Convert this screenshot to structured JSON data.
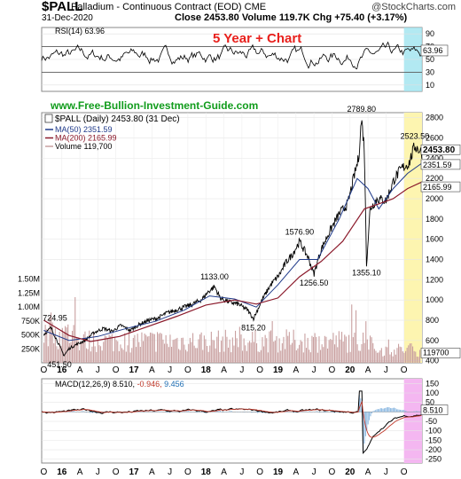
{
  "header": {
    "symbol": "$PALL",
    "name": "Palladium - Continuous Contract (EOD)",
    "exchange": "CME",
    "date": "31-Dec-2020",
    "close_label": "Close",
    "close_value": "2453.80",
    "volume_label": "Volume",
    "volume_value": "119.7K",
    "chg_label": "Chg",
    "chg_value": "+75.40 (+3.17%)",
    "logo": "@StockCharts.com"
  },
  "colors": {
    "price": "#000000",
    "ma50": "#1f3a8a",
    "ma200": "#8b1a2b",
    "volume": "#c9a0a0",
    "title_red": "#e8201c",
    "website_green": "#119c1c",
    "highlight_rsi": "#9fe3ef",
    "highlight_price": "#fdf5b0",
    "highlight_macd": "#f4b7f1"
  },
  "chart_data": [
    {
      "type": "line",
      "panel": "RSI",
      "title": "RSI(14) 63.96",
      "overlay_title": "5 Year + Chart",
      "y_ticks": [
        "90",
        "70",
        "50",
        "30",
        "10"
      ],
      "ylim": [
        0,
        100
      ],
      "reference_lines": [
        70,
        30
      ],
      "last_value": "63.96"
    },
    {
      "type": "line",
      "panel": "Price",
      "title": "$PALL (Daily) 2453.80 (31 Dec)",
      "website": "www.Free-Bullion-Investment-Guide.com",
      "legend": [
        {
          "name": "MA(50) 2351.59",
          "color": "#1f3a8a"
        },
        {
          "name": "MA(200) 2165.99",
          "color": "#8b1a2b"
        },
        {
          "name": "Volume 119,700",
          "color": "#c9a0a0"
        }
      ],
      "y_ticks": [
        400,
        600,
        800,
        1000,
        1200,
        1400,
        1600,
        1800,
        2000,
        2200,
        2400,
        2600,
        2800
      ],
      "y_tick_labels": [
        "400",
        "600",
        "800",
        "1000",
        "1200",
        "1400",
        "1600",
        "1800",
        "2000",
        "2200",
        "2400",
        "2600",
        "2800"
      ],
      "ylim": [
        380,
        2850
      ],
      "series": [
        {
          "name": "Price",
          "x": [
            2015.75,
            2015.85,
            2015.96,
            2016.03,
            2016.1,
            2016.2,
            2016.32,
            2016.45,
            2016.58,
            2016.7,
            2016.82,
            2016.95,
            2017.08,
            2017.2,
            2017.33,
            2017.45,
            2017.58,
            2017.7,
            2017.82,
            2017.95,
            2018.03,
            2018.12,
            2018.2,
            2018.32,
            2018.45,
            2018.58,
            2018.66,
            2018.78,
            2018.9,
            2019.02,
            2019.12,
            2019.2,
            2019.3,
            2019.42,
            2019.5,
            2019.6,
            2019.72,
            2019.85,
            2019.97,
            2020.05,
            2020.12,
            2020.16,
            2020.2,
            2020.23,
            2020.28,
            2020.38,
            2020.5,
            2020.62,
            2020.72,
            2020.82,
            2020.9,
            2021.0
          ],
          "values": [
            660,
            724.95,
            560,
            451.5,
            520,
            560,
            600,
            680,
            720,
            690,
            750,
            700,
            760,
            800,
            820,
            870,
            900,
            930,
            960,
            1010,
            1080,
            1133,
            1020,
            980,
            960,
            900,
            815.2,
            1000,
            1150,
            1250,
            1380,
            1450,
            1576.9,
            1420,
            1256.5,
            1500,
            1680,
            1850,
            1950,
            2200,
            2400,
            2789.8,
            2500,
            1355.1,
            1900,
            2000,
            1980,
            2200,
            2300,
            2350,
            2523.5,
            2453.8
          ]
        },
        {
          "name": "MA(50)",
          "x": [
            2015.75,
            2016.1,
            2016.5,
            2016.9,
            2017.3,
            2017.7,
            2018.05,
            2018.4,
            2018.7,
            2019.0,
            2019.3,
            2019.55,
            2019.85,
            2020.1,
            2020.25,
            2020.4,
            2020.6,
            2020.8,
            2021.0
          ],
          "values": [
            700,
            600,
            640,
            720,
            790,
            900,
            1040,
            1010,
            930,
            1150,
            1400,
            1400,
            1800,
            2200,
            2100,
            1900,
            2100,
            2250,
            2351.59
          ]
        },
        {
          "name": "MA(200)",
          "x": [
            2015.75,
            2016.1,
            2016.4,
            2016.8,
            2017.2,
            2017.6,
            2018.0,
            2018.4,
            2018.7,
            2019.0,
            2019.3,
            2019.6,
            2019.9,
            2020.2,
            2020.4,
            2020.6,
            2020.8,
            2021.0
          ],
          "values": [
            800,
            650,
            590,
            640,
            740,
            840,
            950,
            1000,
            960,
            1020,
            1230,
            1380,
            1580,
            1900,
            1950,
            2000,
            2100,
            2165.99
          ]
        }
      ],
      "annotations": [
        {
          "label": "724.95",
          "x": 2015.85,
          "y": 724.95
        },
        {
          "label": "451.50",
          "x": 2016.03,
          "y": 451.5
        },
        {
          "label": "1133.00",
          "x": 2018.12,
          "y": 1133
        },
        {
          "label": "815.20",
          "x": 2018.66,
          "y": 815.2
        },
        {
          "label": "1576.90",
          "x": 2019.3,
          "y": 1576.9
        },
        {
          "label": "1256.50",
          "x": 2019.5,
          "y": 1256.5
        },
        {
          "label": "2789.80",
          "x": 2020.16,
          "y": 2789.8
        },
        {
          "label": "1355.10",
          "x": 2020.23,
          "y": 1355.1
        },
        {
          "label": "2523.50",
          "x": 2020.9,
          "y": 2523.5
        }
      ],
      "price_tags": [
        {
          "label": "2453.80",
          "y": 2453.8
        },
        {
          "label": "2351.59",
          "y": 2351.59
        },
        {
          "label": "2165.99",
          "y": 2165.99
        }
      ],
      "volume": {
        "ylim": [
          0,
          1750000
        ],
        "tick_values": [
          250000,
          500000,
          750000,
          1000000,
          1250000,
          1500000
        ],
        "tick_labels": [
          "250K",
          "500K",
          "750K",
          "1.00M",
          "1.25M",
          "1.50M"
        ],
        "last_label": "119700"
      },
      "x_ticks": [
        {
          "label": "O",
          "x": 2015.75
        },
        {
          "label": "16",
          "x": 2016.0
        },
        {
          "label": "A",
          "x": 2016.25
        },
        {
          "label": "J",
          "x": 2016.5
        },
        {
          "label": "O",
          "x": 2016.75
        },
        {
          "label": "17",
          "x": 2017.0
        },
        {
          "label": "A",
          "x": 2017.25
        },
        {
          "label": "J",
          "x": 2017.5
        },
        {
          "label": "O",
          "x": 2017.75
        },
        {
          "label": "18",
          "x": 2018.0
        },
        {
          "label": "A",
          "x": 2018.25
        },
        {
          "label": "J",
          "x": 2018.5
        },
        {
          "label": "O",
          "x": 2018.75
        },
        {
          "label": "19",
          "x": 2019.0
        },
        {
          "label": "A",
          "x": 2019.25
        },
        {
          "label": "J",
          "x": 2019.5
        },
        {
          "label": "O",
          "x": 2019.75
        },
        {
          "label": "20",
          "x": 2020.0
        },
        {
          "label": "A",
          "x": 2020.25
        },
        {
          "label": "J",
          "x": 2020.5
        },
        {
          "label": "O",
          "x": 2020.75
        }
      ],
      "highlight_start": 2020.75
    },
    {
      "type": "line",
      "panel": "MACD",
      "title_prefix": "MACD(12,26,9)",
      "macd_value": "8.510",
      "signal_value": "-0.946",
      "hist_value": "9.456",
      "y_ticks": [
        150,
        100,
        50,
        0,
        -50,
        -100,
        -150,
        -200,
        -250
      ],
      "y_tick_labels": [
        "150",
        "100",
        "50",
        "0",
        "-50",
        "-100",
        "-150",
        "-200",
        "-250"
      ],
      "ylim": [
        -270,
        175
      ],
      "last_value": "8.510"
    }
  ]
}
